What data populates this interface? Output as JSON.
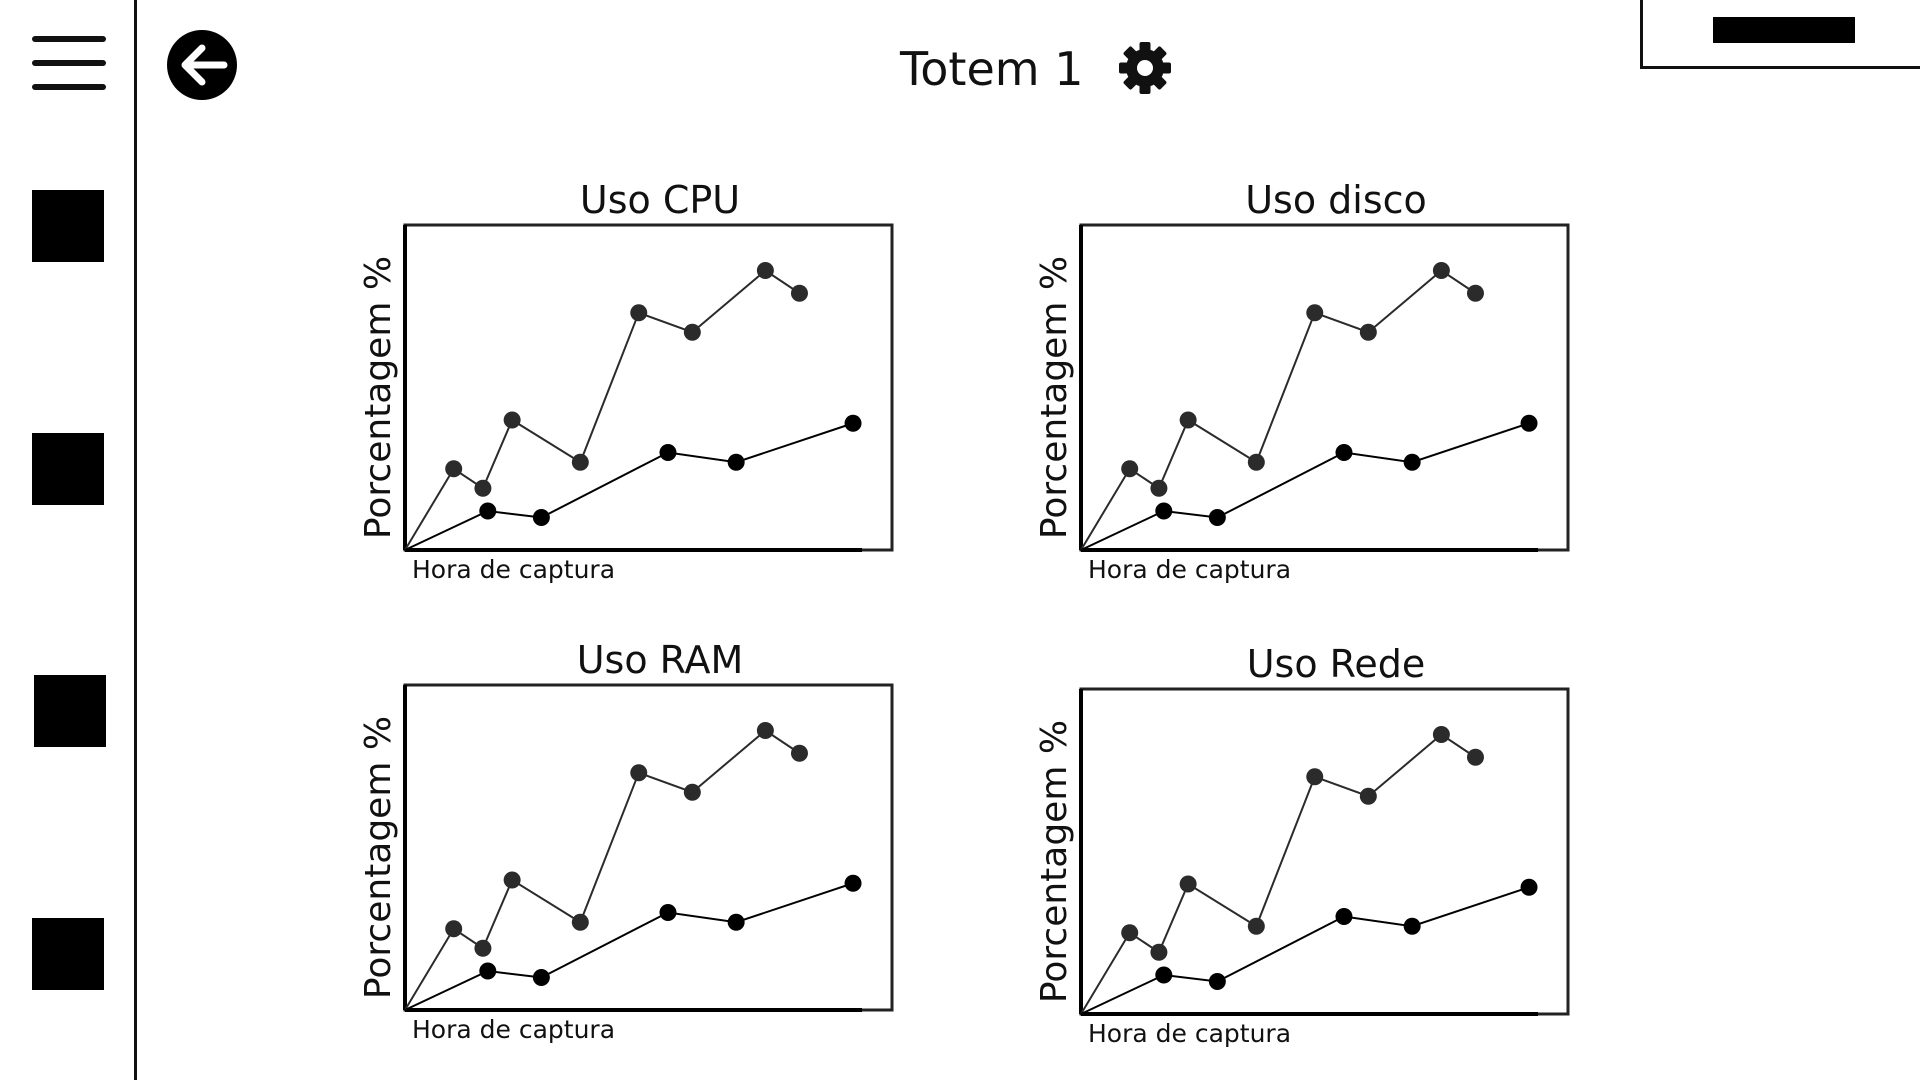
{
  "header": {
    "title": "Totem 1"
  },
  "icons": {
    "menu": "hamburger-menu-icon",
    "back": "back-arrow-icon",
    "settings": "gear-icon"
  },
  "chart_data": [
    {
      "type": "line",
      "title": "Uso CPU",
      "xlabel": "Hora de captura",
      "ylabel": "Porcentagem %",
      "ylim": [
        0,
        100
      ],
      "series": [
        {
          "x": [
            0,
            10,
            16,
            22,
            36,
            48,
            59,
            74,
            81
          ],
          "values": [
            0,
            25,
            19,
            40,
            27,
            73,
            67,
            86,
            79
          ]
        },
        {
          "x": [
            0,
            17,
            28,
            54,
            68,
            92
          ],
          "values": [
            0,
            12,
            10,
            30,
            27,
            39
          ]
        }
      ]
    },
    {
      "type": "line",
      "title": "Uso disco",
      "xlabel": "Hora de captura",
      "ylabel": "Porcentagem %",
      "ylim": [
        0,
        100
      ],
      "series": [
        {
          "x": [
            0,
            10,
            16,
            22,
            36,
            48,
            59,
            74,
            81
          ],
          "values": [
            0,
            25,
            19,
            40,
            27,
            73,
            67,
            86,
            79
          ]
        },
        {
          "x": [
            0,
            17,
            28,
            54,
            68,
            92
          ],
          "values": [
            0,
            12,
            10,
            30,
            27,
            39
          ]
        }
      ]
    },
    {
      "type": "line",
      "title": "Uso RAM",
      "xlabel": "Hora de captura",
      "ylabel": "Porcentagem %",
      "ylim": [
        0,
        100
      ],
      "series": [
        {
          "x": [
            0,
            10,
            16,
            22,
            36,
            48,
            59,
            74,
            81
          ],
          "values": [
            0,
            25,
            19,
            40,
            27,
            73,
            67,
            86,
            79
          ]
        },
        {
          "x": [
            0,
            17,
            28,
            54,
            68,
            92
          ],
          "values": [
            0,
            12,
            10,
            30,
            27,
            39
          ]
        }
      ]
    },
    {
      "type": "line",
      "title": "Uso Rede",
      "xlabel": "Hora de captura",
      "ylabel": "Porcentagem %",
      "ylim": [
        0,
        100
      ],
      "series": [
        {
          "x": [
            0,
            10,
            16,
            22,
            36,
            48,
            59,
            74,
            81
          ],
          "values": [
            0,
            25,
            19,
            40,
            27,
            73,
            67,
            86,
            79
          ]
        },
        {
          "x": [
            0,
            17,
            28,
            54,
            68,
            92
          ],
          "values": [
            0,
            12,
            10,
            30,
            27,
            39
          ]
        }
      ]
    }
  ]
}
